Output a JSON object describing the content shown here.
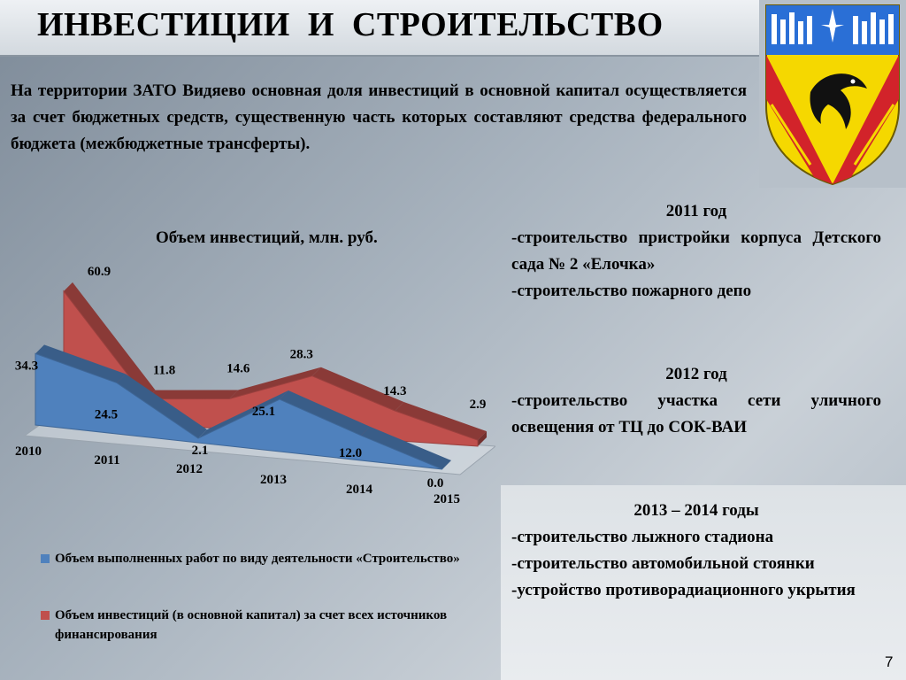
{
  "title": "ИНВЕСТИЦИИ  И  СТРОИТЕЛЬСТВО",
  "intro": "На территории ЗАТО Видяево основная доля инвестиций в основной капитал осуществляется за счет бюджетных средств, существенную часть которых составляют средства федерального бюджета (межбюджетные трансферты).",
  "chart_data": {
    "type": "area",
    "title": "Объем инвестиций, млн. руб.",
    "categories": [
      "2010",
      "2011",
      "2012",
      "2013",
      "2014",
      "2015"
    ],
    "series": [
      {
        "name": "Объем выполненных работ по виду деятельности «Строительство»",
        "values": [
          34.3,
          24.5,
          2.1,
          25.1,
          12.0,
          0.0
        ],
        "color": "#4f81bd"
      },
      {
        "name": "Объем инвестиций (в основной капитал) за счет всех источников финансирования",
        "values": [
          60.9,
          11.8,
          14.6,
          28.3,
          14.3,
          2.9
        ],
        "color": "#c0504d"
      }
    ],
    "value_labels": {
      "blue": [
        "34.3",
        "24.5",
        "2.1",
        "25.1",
        "12.0",
        "0.0"
      ],
      "red": [
        "60.9",
        "11.8",
        "14.6",
        "28.3",
        "14.3",
        "2.9"
      ]
    },
    "legend_position": "bottom",
    "grid": false
  },
  "projects": [
    {
      "year": "2011 год",
      "items": [
        "-строительство пристройки корпуса Детского сада № 2 «Елочка»",
        "-строительство пожарного депо"
      ]
    },
    {
      "year": "2012 год",
      "items": [
        "-строительство участка сети уличного освещения от ТЦ до СОК-ВАИ"
      ]
    },
    {
      "year": "2013 – 2014 годы",
      "items": [
        "-строительство лыжного стадиона",
        "-строительство автомобильной стоянки",
        "-устройство противорадиационного укрытия"
      ]
    }
  ],
  "page_number": "7",
  "emblem": {
    "icon": "dolphin-coat-of-arms-icon",
    "colors": {
      "shield_top": "#2a6fd6",
      "shield_bottom": "#f5d800",
      "diagonals": "#d2232a"
    }
  }
}
